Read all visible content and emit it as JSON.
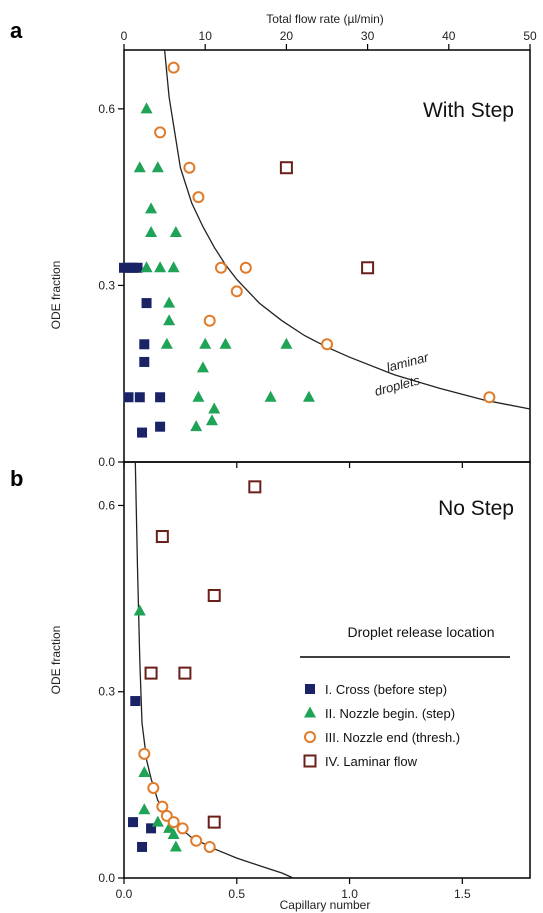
{
  "colors": {
    "cross": "#1a2366",
    "nozzle_begin": "#1fa356",
    "nozzle_end": "#e07b2a",
    "laminar": "#6b1f1a",
    "curve": "#222222"
  },
  "chart_data": [
    {
      "panel": "a",
      "type": "scatter",
      "title": "With Step",
      "xlabel": "",
      "ylabel": "ODE fraction",
      "top_axis_label": "Total flow rate (µl/min)",
      "top_axis_ticks": [
        0,
        10,
        20,
        30,
        40,
        50
      ],
      "xlim": [
        0,
        1.8
      ],
      "ylim": [
        0,
        0.7
      ],
      "xticks": [
        0,
        0.5,
        1.0,
        1.5
      ],
      "yticks": [
        0.0,
        0.3,
        0.6
      ],
      "ytick_labels": [
        "0.0",
        "0.3",
        "0.6"
      ],
      "annotations": [
        "laminar",
        "droplets"
      ],
      "boundary_curve": [
        [
          0.18,
          0.7
        ],
        [
          0.2,
          0.62
        ],
        [
          0.25,
          0.5
        ],
        [
          0.3,
          0.44
        ],
        [
          0.35,
          0.4
        ],
        [
          0.4,
          0.365
        ],
        [
          0.45,
          0.335
        ],
        [
          0.5,
          0.31
        ],
        [
          0.6,
          0.27
        ],
        [
          0.7,
          0.24
        ],
        [
          0.8,
          0.215
        ],
        [
          0.9,
          0.195
        ],
        [
          1.0,
          0.178
        ],
        [
          1.2,
          0.148
        ],
        [
          1.4,
          0.125
        ],
        [
          1.6,
          0.105
        ],
        [
          1.8,
          0.09
        ]
      ],
      "series": [
        {
          "name": "I. Cross (before step)",
          "marker": "filled-square",
          "points": [
            [
              0.0,
              0.33
            ],
            [
              0.02,
              0.33
            ],
            [
              0.04,
              0.33
            ],
            [
              0.06,
              0.33
            ],
            [
              0.1,
              0.27
            ],
            [
              0.09,
              0.2
            ],
            [
              0.09,
              0.17
            ],
            [
              0.02,
              0.11
            ],
            [
              0.07,
              0.11
            ],
            [
              0.16,
              0.11
            ],
            [
              0.16,
              0.06
            ],
            [
              0.08,
              0.05
            ]
          ]
        },
        {
          "name": "II. Nozzle begin. (step)",
          "marker": "filled-triangle",
          "points": [
            [
              0.1,
              0.6
            ],
            [
              0.07,
              0.5
            ],
            [
              0.15,
              0.5
            ],
            [
              0.12,
              0.43
            ],
            [
              0.12,
              0.39
            ],
            [
              0.23,
              0.39
            ],
            [
              0.1,
              0.33
            ],
            [
              0.16,
              0.33
            ],
            [
              0.22,
              0.33
            ],
            [
              0.2,
              0.27
            ],
            [
              0.2,
              0.24
            ],
            [
              0.19,
              0.2
            ],
            [
              0.36,
              0.2
            ],
            [
              0.45,
              0.2
            ],
            [
              0.72,
              0.2
            ],
            [
              0.35,
              0.16
            ],
            [
              0.33,
              0.11
            ],
            [
              0.65,
              0.11
            ],
            [
              0.82,
              0.11
            ],
            [
              0.4,
              0.09
            ],
            [
              0.32,
              0.06
            ],
            [
              0.39,
              0.07
            ]
          ]
        },
        {
          "name": "III. Nozzle end (thresh.)",
          "marker": "open-circle",
          "points": [
            [
              0.22,
              0.67
            ],
            [
              0.16,
              0.56
            ],
            [
              0.29,
              0.5
            ],
            [
              0.33,
              0.45
            ],
            [
              0.43,
              0.33
            ],
            [
              0.54,
              0.33
            ],
            [
              0.5,
              0.29
            ],
            [
              0.38,
              0.24
            ],
            [
              0.9,
              0.2
            ],
            [
              1.62,
              0.11
            ]
          ]
        },
        {
          "name": "IV. Laminar flow",
          "marker": "open-square",
          "points": [
            [
              0.72,
              0.5
            ],
            [
              1.08,
              0.33
            ]
          ]
        }
      ]
    },
    {
      "panel": "b",
      "type": "scatter",
      "title": "No Step",
      "xlabel": "Capillary number",
      "ylabel": "ODE fraction",
      "xlim": [
        0,
        1.8
      ],
      "ylim": [
        0,
        0.67
      ],
      "xticks": [
        0,
        0.5,
        1.0,
        1.5
      ],
      "xtick_labels": [
        "0.0",
        "0.5",
        "1.0",
        "1.5"
      ],
      "yticks": [
        0.0,
        0.3,
        0.6
      ],
      "ytick_labels": [
        "0.0",
        "0.3",
        "0.6"
      ],
      "legend_title": "Droplet release location",
      "legend_position": "lower-right",
      "boundary_curve": [
        [
          0.05,
          0.67
        ],
        [
          0.06,
          0.5
        ],
        [
          0.07,
          0.35
        ],
        [
          0.08,
          0.25
        ],
        [
          0.1,
          0.19
        ],
        [
          0.12,
          0.16
        ],
        [
          0.15,
          0.125
        ],
        [
          0.2,
          0.095
        ],
        [
          0.3,
          0.065
        ],
        [
          0.4,
          0.047
        ],
        [
          0.5,
          0.032
        ],
        [
          0.6,
          0.02
        ],
        [
          0.7,
          0.008
        ],
        [
          0.75,
          0.0
        ]
      ],
      "series": [
        {
          "name": "I. Cross (before step)",
          "marker": "filled-square",
          "points": [
            [
              0.05,
              0.285
            ],
            [
              0.04,
              0.09
            ],
            [
              0.12,
              0.08
            ],
            [
              0.08,
              0.05
            ]
          ]
        },
        {
          "name": "II. Nozzle begin. (step)",
          "marker": "filled-triangle",
          "points": [
            [
              0.07,
              0.43
            ],
            [
              0.09,
              0.17
            ],
            [
              0.09,
              0.11
            ],
            [
              0.15,
              0.09
            ],
            [
              0.2,
              0.08
            ],
            [
              0.22,
              0.07
            ],
            [
              0.23,
              0.05
            ]
          ]
        },
        {
          "name": "III. Nozzle end (thresh.)",
          "marker": "open-circle",
          "points": [
            [
              0.09,
              0.2
            ],
            [
              0.13,
              0.145
            ],
            [
              0.17,
              0.115
            ],
            [
              0.19,
              0.1
            ],
            [
              0.22,
              0.09
            ],
            [
              0.26,
              0.08
            ],
            [
              0.32,
              0.06
            ],
            [
              0.38,
              0.05
            ]
          ]
        },
        {
          "name": "IV. Laminar flow",
          "marker": "open-square",
          "points": [
            [
              0.58,
              0.63
            ],
            [
              0.17,
              0.55
            ],
            [
              0.4,
              0.455
            ],
            [
              0.12,
              0.33
            ],
            [
              0.27,
              0.33
            ],
            [
              0.4,
              0.09
            ]
          ]
        }
      ]
    }
  ]
}
